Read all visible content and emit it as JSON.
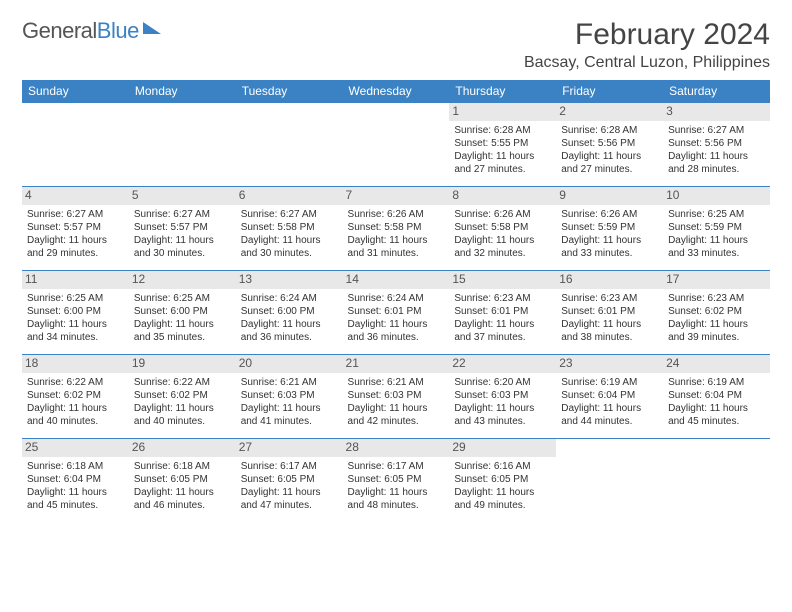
{
  "brand": {
    "part1": "General",
    "part2": "Blue"
  },
  "title": "February 2024",
  "location": "Bacsay, Central Luzon, Philippines",
  "colors": {
    "accent": "#3b82c4",
    "dayBg": "#e8e8e8",
    "text": "#333"
  },
  "dow": [
    "Sunday",
    "Monday",
    "Tuesday",
    "Wednesday",
    "Thursday",
    "Friday",
    "Saturday"
  ],
  "weeks": [
    [
      null,
      null,
      null,
      null,
      {
        "n": "1",
        "sr": "Sunrise: 6:28 AM",
        "ss": "Sunset: 5:55 PM",
        "dl1": "Daylight: 11 hours",
        "dl2": "and 27 minutes."
      },
      {
        "n": "2",
        "sr": "Sunrise: 6:28 AM",
        "ss": "Sunset: 5:56 PM",
        "dl1": "Daylight: 11 hours",
        "dl2": "and 27 minutes."
      },
      {
        "n": "3",
        "sr": "Sunrise: 6:27 AM",
        "ss": "Sunset: 5:56 PM",
        "dl1": "Daylight: 11 hours",
        "dl2": "and 28 minutes."
      }
    ],
    [
      {
        "n": "4",
        "sr": "Sunrise: 6:27 AM",
        "ss": "Sunset: 5:57 PM",
        "dl1": "Daylight: 11 hours",
        "dl2": "and 29 minutes."
      },
      {
        "n": "5",
        "sr": "Sunrise: 6:27 AM",
        "ss": "Sunset: 5:57 PM",
        "dl1": "Daylight: 11 hours",
        "dl2": "and 30 minutes."
      },
      {
        "n": "6",
        "sr": "Sunrise: 6:27 AM",
        "ss": "Sunset: 5:58 PM",
        "dl1": "Daylight: 11 hours",
        "dl2": "and 30 minutes."
      },
      {
        "n": "7",
        "sr": "Sunrise: 6:26 AM",
        "ss": "Sunset: 5:58 PM",
        "dl1": "Daylight: 11 hours",
        "dl2": "and 31 minutes."
      },
      {
        "n": "8",
        "sr": "Sunrise: 6:26 AM",
        "ss": "Sunset: 5:58 PM",
        "dl1": "Daylight: 11 hours",
        "dl2": "and 32 minutes."
      },
      {
        "n": "9",
        "sr": "Sunrise: 6:26 AM",
        "ss": "Sunset: 5:59 PM",
        "dl1": "Daylight: 11 hours",
        "dl2": "and 33 minutes."
      },
      {
        "n": "10",
        "sr": "Sunrise: 6:25 AM",
        "ss": "Sunset: 5:59 PM",
        "dl1": "Daylight: 11 hours",
        "dl2": "and 33 minutes."
      }
    ],
    [
      {
        "n": "11",
        "sr": "Sunrise: 6:25 AM",
        "ss": "Sunset: 6:00 PM",
        "dl1": "Daylight: 11 hours",
        "dl2": "and 34 minutes."
      },
      {
        "n": "12",
        "sr": "Sunrise: 6:25 AM",
        "ss": "Sunset: 6:00 PM",
        "dl1": "Daylight: 11 hours",
        "dl2": "and 35 minutes."
      },
      {
        "n": "13",
        "sr": "Sunrise: 6:24 AM",
        "ss": "Sunset: 6:00 PM",
        "dl1": "Daylight: 11 hours",
        "dl2": "and 36 minutes."
      },
      {
        "n": "14",
        "sr": "Sunrise: 6:24 AM",
        "ss": "Sunset: 6:01 PM",
        "dl1": "Daylight: 11 hours",
        "dl2": "and 36 minutes."
      },
      {
        "n": "15",
        "sr": "Sunrise: 6:23 AM",
        "ss": "Sunset: 6:01 PM",
        "dl1": "Daylight: 11 hours",
        "dl2": "and 37 minutes."
      },
      {
        "n": "16",
        "sr": "Sunrise: 6:23 AM",
        "ss": "Sunset: 6:01 PM",
        "dl1": "Daylight: 11 hours",
        "dl2": "and 38 minutes."
      },
      {
        "n": "17",
        "sr": "Sunrise: 6:23 AM",
        "ss": "Sunset: 6:02 PM",
        "dl1": "Daylight: 11 hours",
        "dl2": "and 39 minutes."
      }
    ],
    [
      {
        "n": "18",
        "sr": "Sunrise: 6:22 AM",
        "ss": "Sunset: 6:02 PM",
        "dl1": "Daylight: 11 hours",
        "dl2": "and 40 minutes."
      },
      {
        "n": "19",
        "sr": "Sunrise: 6:22 AM",
        "ss": "Sunset: 6:02 PM",
        "dl1": "Daylight: 11 hours",
        "dl2": "and 40 minutes."
      },
      {
        "n": "20",
        "sr": "Sunrise: 6:21 AM",
        "ss": "Sunset: 6:03 PM",
        "dl1": "Daylight: 11 hours",
        "dl2": "and 41 minutes."
      },
      {
        "n": "21",
        "sr": "Sunrise: 6:21 AM",
        "ss": "Sunset: 6:03 PM",
        "dl1": "Daylight: 11 hours",
        "dl2": "and 42 minutes."
      },
      {
        "n": "22",
        "sr": "Sunrise: 6:20 AM",
        "ss": "Sunset: 6:03 PM",
        "dl1": "Daylight: 11 hours",
        "dl2": "and 43 minutes."
      },
      {
        "n": "23",
        "sr": "Sunrise: 6:19 AM",
        "ss": "Sunset: 6:04 PM",
        "dl1": "Daylight: 11 hours",
        "dl2": "and 44 minutes."
      },
      {
        "n": "24",
        "sr": "Sunrise: 6:19 AM",
        "ss": "Sunset: 6:04 PM",
        "dl1": "Daylight: 11 hours",
        "dl2": "and 45 minutes."
      }
    ],
    [
      {
        "n": "25",
        "sr": "Sunrise: 6:18 AM",
        "ss": "Sunset: 6:04 PM",
        "dl1": "Daylight: 11 hours",
        "dl2": "and 45 minutes."
      },
      {
        "n": "26",
        "sr": "Sunrise: 6:18 AM",
        "ss": "Sunset: 6:05 PM",
        "dl1": "Daylight: 11 hours",
        "dl2": "and 46 minutes."
      },
      {
        "n": "27",
        "sr": "Sunrise: 6:17 AM",
        "ss": "Sunset: 6:05 PM",
        "dl1": "Daylight: 11 hours",
        "dl2": "and 47 minutes."
      },
      {
        "n": "28",
        "sr": "Sunrise: 6:17 AM",
        "ss": "Sunset: 6:05 PM",
        "dl1": "Daylight: 11 hours",
        "dl2": "and 48 minutes."
      },
      {
        "n": "29",
        "sr": "Sunrise: 6:16 AM",
        "ss": "Sunset: 6:05 PM",
        "dl1": "Daylight: 11 hours",
        "dl2": "and 49 minutes."
      },
      null,
      null
    ]
  ]
}
